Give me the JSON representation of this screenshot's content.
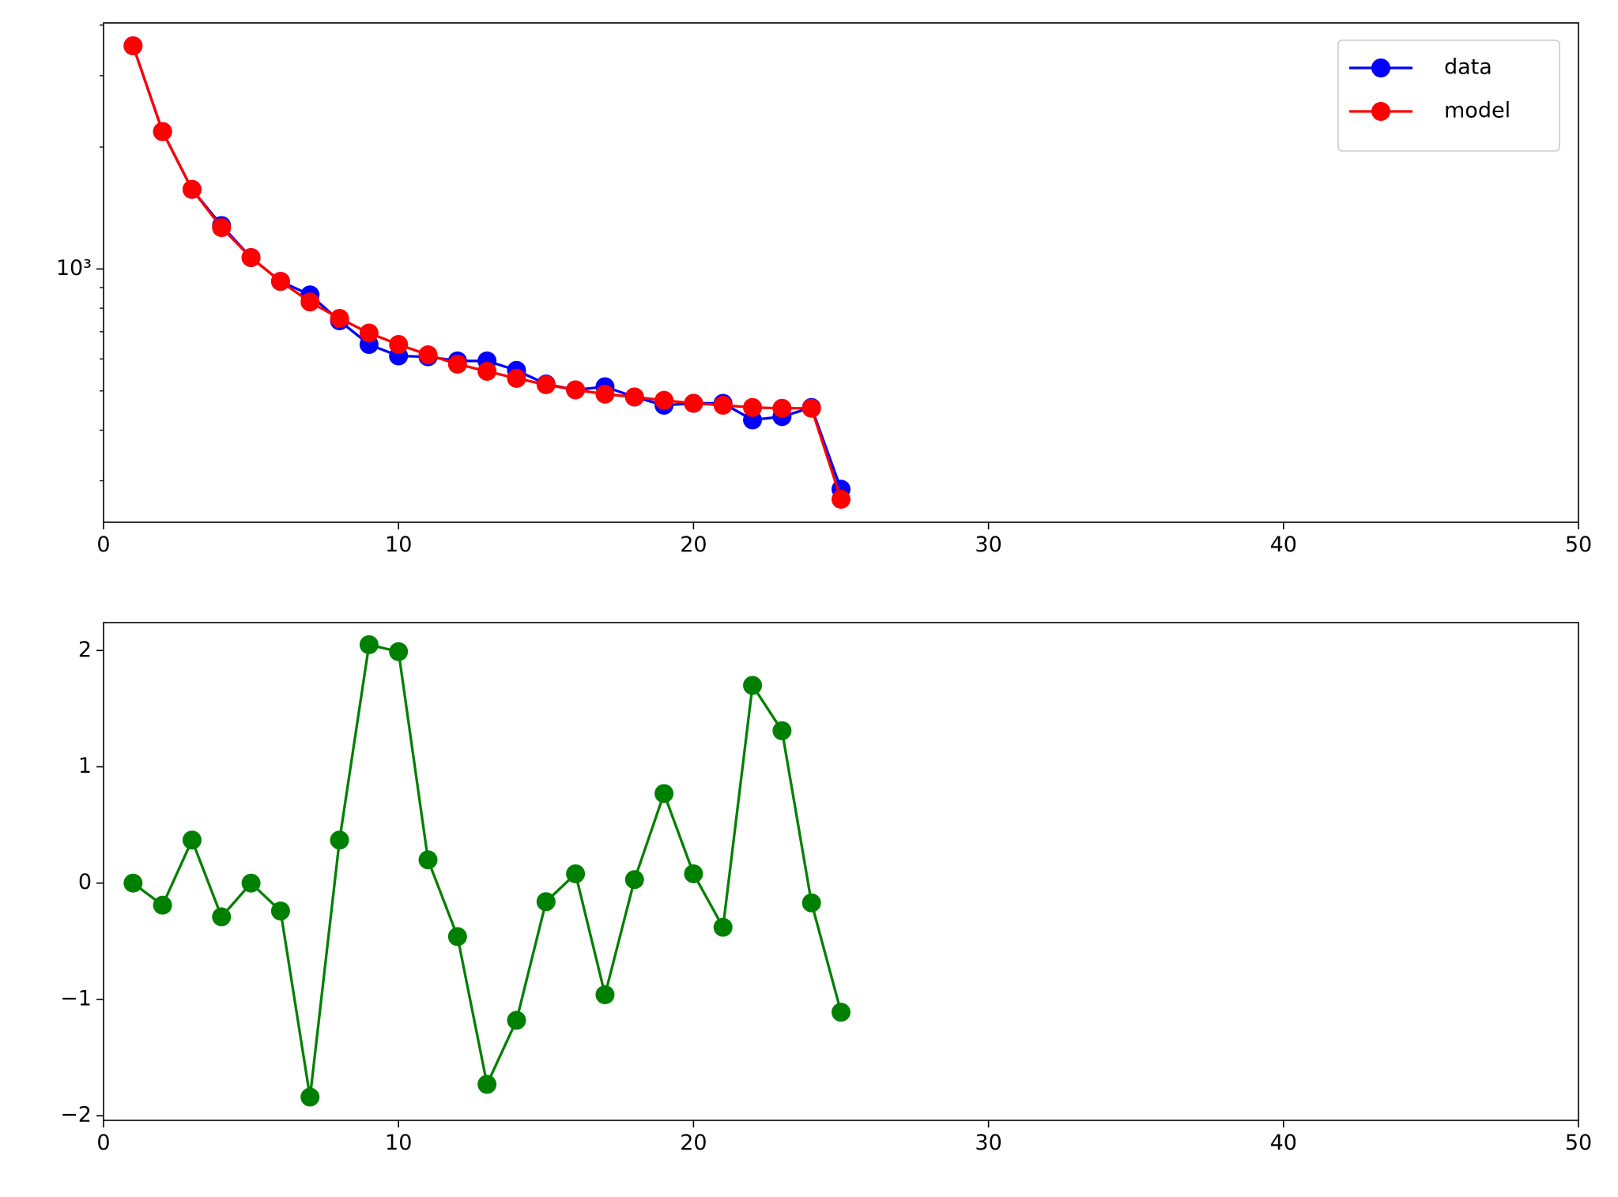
{
  "chart_data": [
    {
      "type": "line",
      "yscale": "log",
      "x": [
        1,
        2,
        3,
        4,
        5,
        6,
        7,
        8,
        9,
        10,
        11,
        12,
        13,
        14,
        15,
        16,
        17,
        18,
        19,
        20,
        21,
        22,
        23,
        24,
        25
      ],
      "series": [
        {
          "name": "data",
          "color": "#0000ff",
          "values": [
            3556,
            2184,
            1572,
            1280,
            1067,
            932,
            863,
            745,
            651,
            610,
            607,
            593,
            593,
            562,
            520,
            503,
            512,
            483,
            461,
            466,
            466,
            424,
            432,
            455,
            286
          ]
        },
        {
          "name": "model",
          "color": "#ff0000",
          "values": [
            3556,
            2184,
            1572,
            1265,
            1067,
            932,
            829,
            755,
            695,
            651,
            614,
            582,
            559,
            537,
            518,
            503,
            491,
            483,
            474,
            466,
            461,
            455,
            453,
            453,
            270
          ]
        }
      ],
      "xlim": [
        0,
        50
      ],
      "xticks": [
        0,
        10,
        20,
        30,
        40,
        50
      ],
      "ylim": [
        237,
        4050
      ],
      "yticks": [
        {
          "value": 1000,
          "label": "10³"
        }
      ],
      "legend": "upper right"
    },
    {
      "type": "line",
      "x": [
        1,
        2,
        3,
        4,
        5,
        6,
        7,
        8,
        9,
        10,
        11,
        12,
        13,
        14,
        15,
        16,
        17,
        18,
        19,
        20,
        21,
        22,
        23,
        24,
        25
      ],
      "series": [
        {
          "color": "#008000",
          "values": [
            0,
            -0.19,
            0.37,
            -0.29,
            0,
            -0.24,
            -1.84,
            0.37,
            2.05,
            1.99,
            0.2,
            -0.46,
            -1.73,
            -1.18,
            -0.16,
            0.08,
            -0.96,
            0.03,
            0.77,
            0.08,
            -0.38,
            1.7,
            1.31,
            -0.17,
            -1.11
          ]
        }
      ],
      "xlim": [
        0,
        50
      ],
      "xticks": [
        0,
        10,
        20,
        30,
        40,
        50
      ],
      "ylim": [
        -2.04,
        2.24
      ],
      "yticks": [
        {
          "value": -2,
          "label": "−2"
        },
        {
          "value": -1,
          "label": "−1"
        },
        0,
        1,
        2
      ]
    }
  ]
}
